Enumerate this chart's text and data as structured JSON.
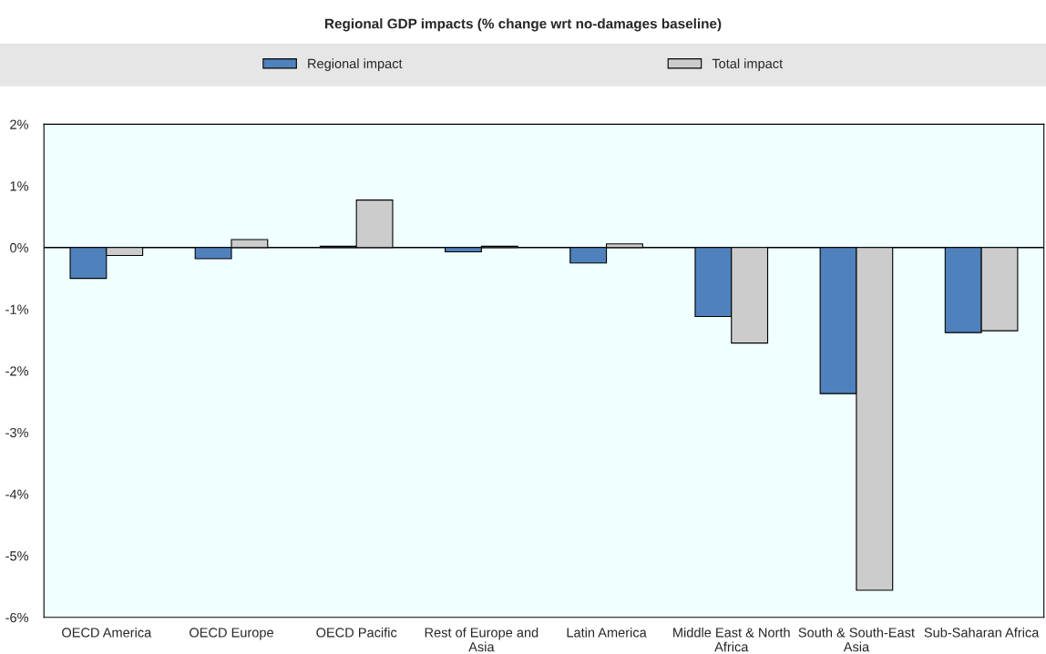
{
  "chart_data": {
    "type": "bar",
    "title": "Regional GDP impacts (% change wrt no-damages baseline)",
    "categories": [
      "OECD America",
      "OECD Europe",
      "OECD Pacific",
      "Rest of Europe and\nAsia",
      "Latin America",
      "Middle East & North\nAfrica",
      "South & South-East\nAsia",
      "Sub-Saharan Africa"
    ],
    "series": [
      {
        "name": "Regional impact",
        "color": "#4f81bd",
        "values": [
          -0.5,
          -0.18,
          0.02,
          -0.07,
          -0.25,
          -1.12,
          -2.37,
          -1.38
        ]
      },
      {
        "name": "Total impact",
        "color": "#cccccc",
        "values": [
          -0.13,
          0.13,
          0.77,
          0.02,
          0.06,
          -1.55,
          -5.56,
          -1.35
        ]
      }
    ],
    "ylim": [
      -6,
      2
    ],
    "yticks": [
      {
        "value": -6,
        "label": "-6%"
      },
      {
        "value": -5,
        "label": "-5%"
      },
      {
        "value": -4,
        "label": "-4%"
      },
      {
        "value": -3,
        "label": "-3%"
      },
      {
        "value": -2,
        "label": "-2%"
      },
      {
        "value": -1,
        "label": "-1%"
      },
      {
        "value": 0,
        "label": "0%"
      },
      {
        "value": 1,
        "label": "1%"
      },
      {
        "value": 2,
        "label": "2%"
      }
    ],
    "ref_lines": [
      {
        "axis": "y",
        "value": 0
      }
    ],
    "grid": false,
    "legend": "top"
  }
}
